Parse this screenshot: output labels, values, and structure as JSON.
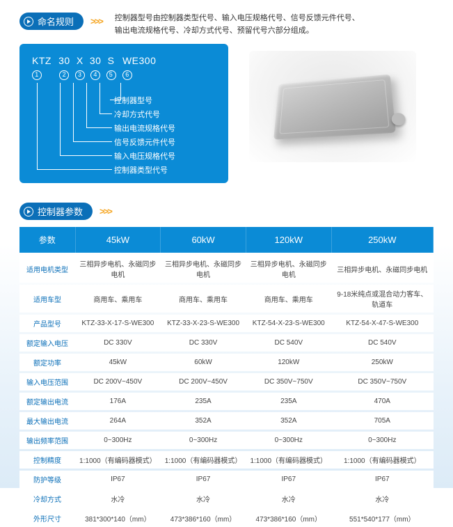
{
  "sections": {
    "naming": {
      "title": "命名规则"
    },
    "params": {
      "title": "控制器参数"
    }
  },
  "intro": {
    "line1": "控制器型号由控制器类型代号、输入电压规格代号、信号反馈元件代号、",
    "line2": "输出电流规格代号、冷却方式代号、预留代号六部分组成。"
  },
  "model": {
    "parts": [
      "KTZ",
      "30",
      "X",
      "30",
      "S",
      "WE300"
    ],
    "indices": [
      "1",
      "2",
      "3",
      "4",
      "5",
      "6"
    ],
    "labels": [
      "控制器型号",
      "冷却方式代号",
      "输出电流规格代号",
      "信号反馈元件代号",
      "输入电压规格代号",
      "控制器类型代号"
    ]
  },
  "table": {
    "header": [
      "参数",
      "45kW",
      "60kW",
      "120kW",
      "250kW"
    ],
    "rows": [
      {
        "label": "适用电机类型",
        "cells": [
          "三相异步电机、永磁同步电机",
          "三相异步电机、永磁同步电机",
          "三相异步电机、永磁同步电机",
          "三相异步电机、永磁同步电机"
        ]
      },
      {
        "label": "适用车型",
        "cells": [
          "商用车、乘用车",
          "商用车、乘用车",
          "商用车、乘用车",
          "9-18米纯点或混合动力客车、轨道车"
        ]
      },
      {
        "label": "产品型号",
        "cells": [
          "KTZ-33-X-17-S-WE300",
          "KTZ-33-X-23-S-WE300",
          "KTZ-54-X-23-S-WE300",
          "KTZ-54-X-47-S-WE300"
        ]
      },
      {
        "label": "额定输入电压",
        "cells": [
          "DC  330V",
          "DC  330V",
          "DC  540V",
          "DC  540V"
        ]
      },
      {
        "label": "额定功率",
        "cells": [
          "45kW",
          "60kW",
          "120kW",
          "250kW"
        ]
      },
      {
        "label": "输入电压范围",
        "cells": [
          "DC  200V~450V",
          "DC  200V~450V",
          "DC  350V~750V",
          "DC  350V~750V"
        ]
      },
      {
        "label": "额定输出电流",
        "cells": [
          "176A",
          "235A",
          "235A",
          "470A"
        ]
      },
      {
        "label": "最大输出电流",
        "cells": [
          "264A",
          "352A",
          "352A",
          "705A"
        ]
      },
      {
        "label": "输出频率范围",
        "cells": [
          "0~300Hz",
          "0~300Hz",
          "0~300Hz",
          "0~300Hz"
        ]
      },
      {
        "label": "控制精度",
        "cells": [
          "1:1000（有编码器模式）",
          "1:1000（有编码器模式）",
          "1:1000（有编码器模式）",
          "1:1000（有编码器模式）"
        ]
      },
      {
        "label": "防护等级",
        "cells": [
          "IP67",
          "IP67",
          "IP67",
          "IP67"
        ]
      },
      {
        "label": "冷却方式",
        "cells": [
          "水冷",
          "水冷",
          "水冷",
          "水冷"
        ]
      },
      {
        "label": "外形尺寸",
        "cells": [
          "381*300*140（mm）",
          "473*386*160（mm）",
          "473*386*160（mm）",
          "551*540*177（mm）"
        ]
      }
    ]
  },
  "colors": {
    "primary": "#0b8bd6",
    "pill": "#0b6fb8",
    "chevron": "#f5a623"
  }
}
